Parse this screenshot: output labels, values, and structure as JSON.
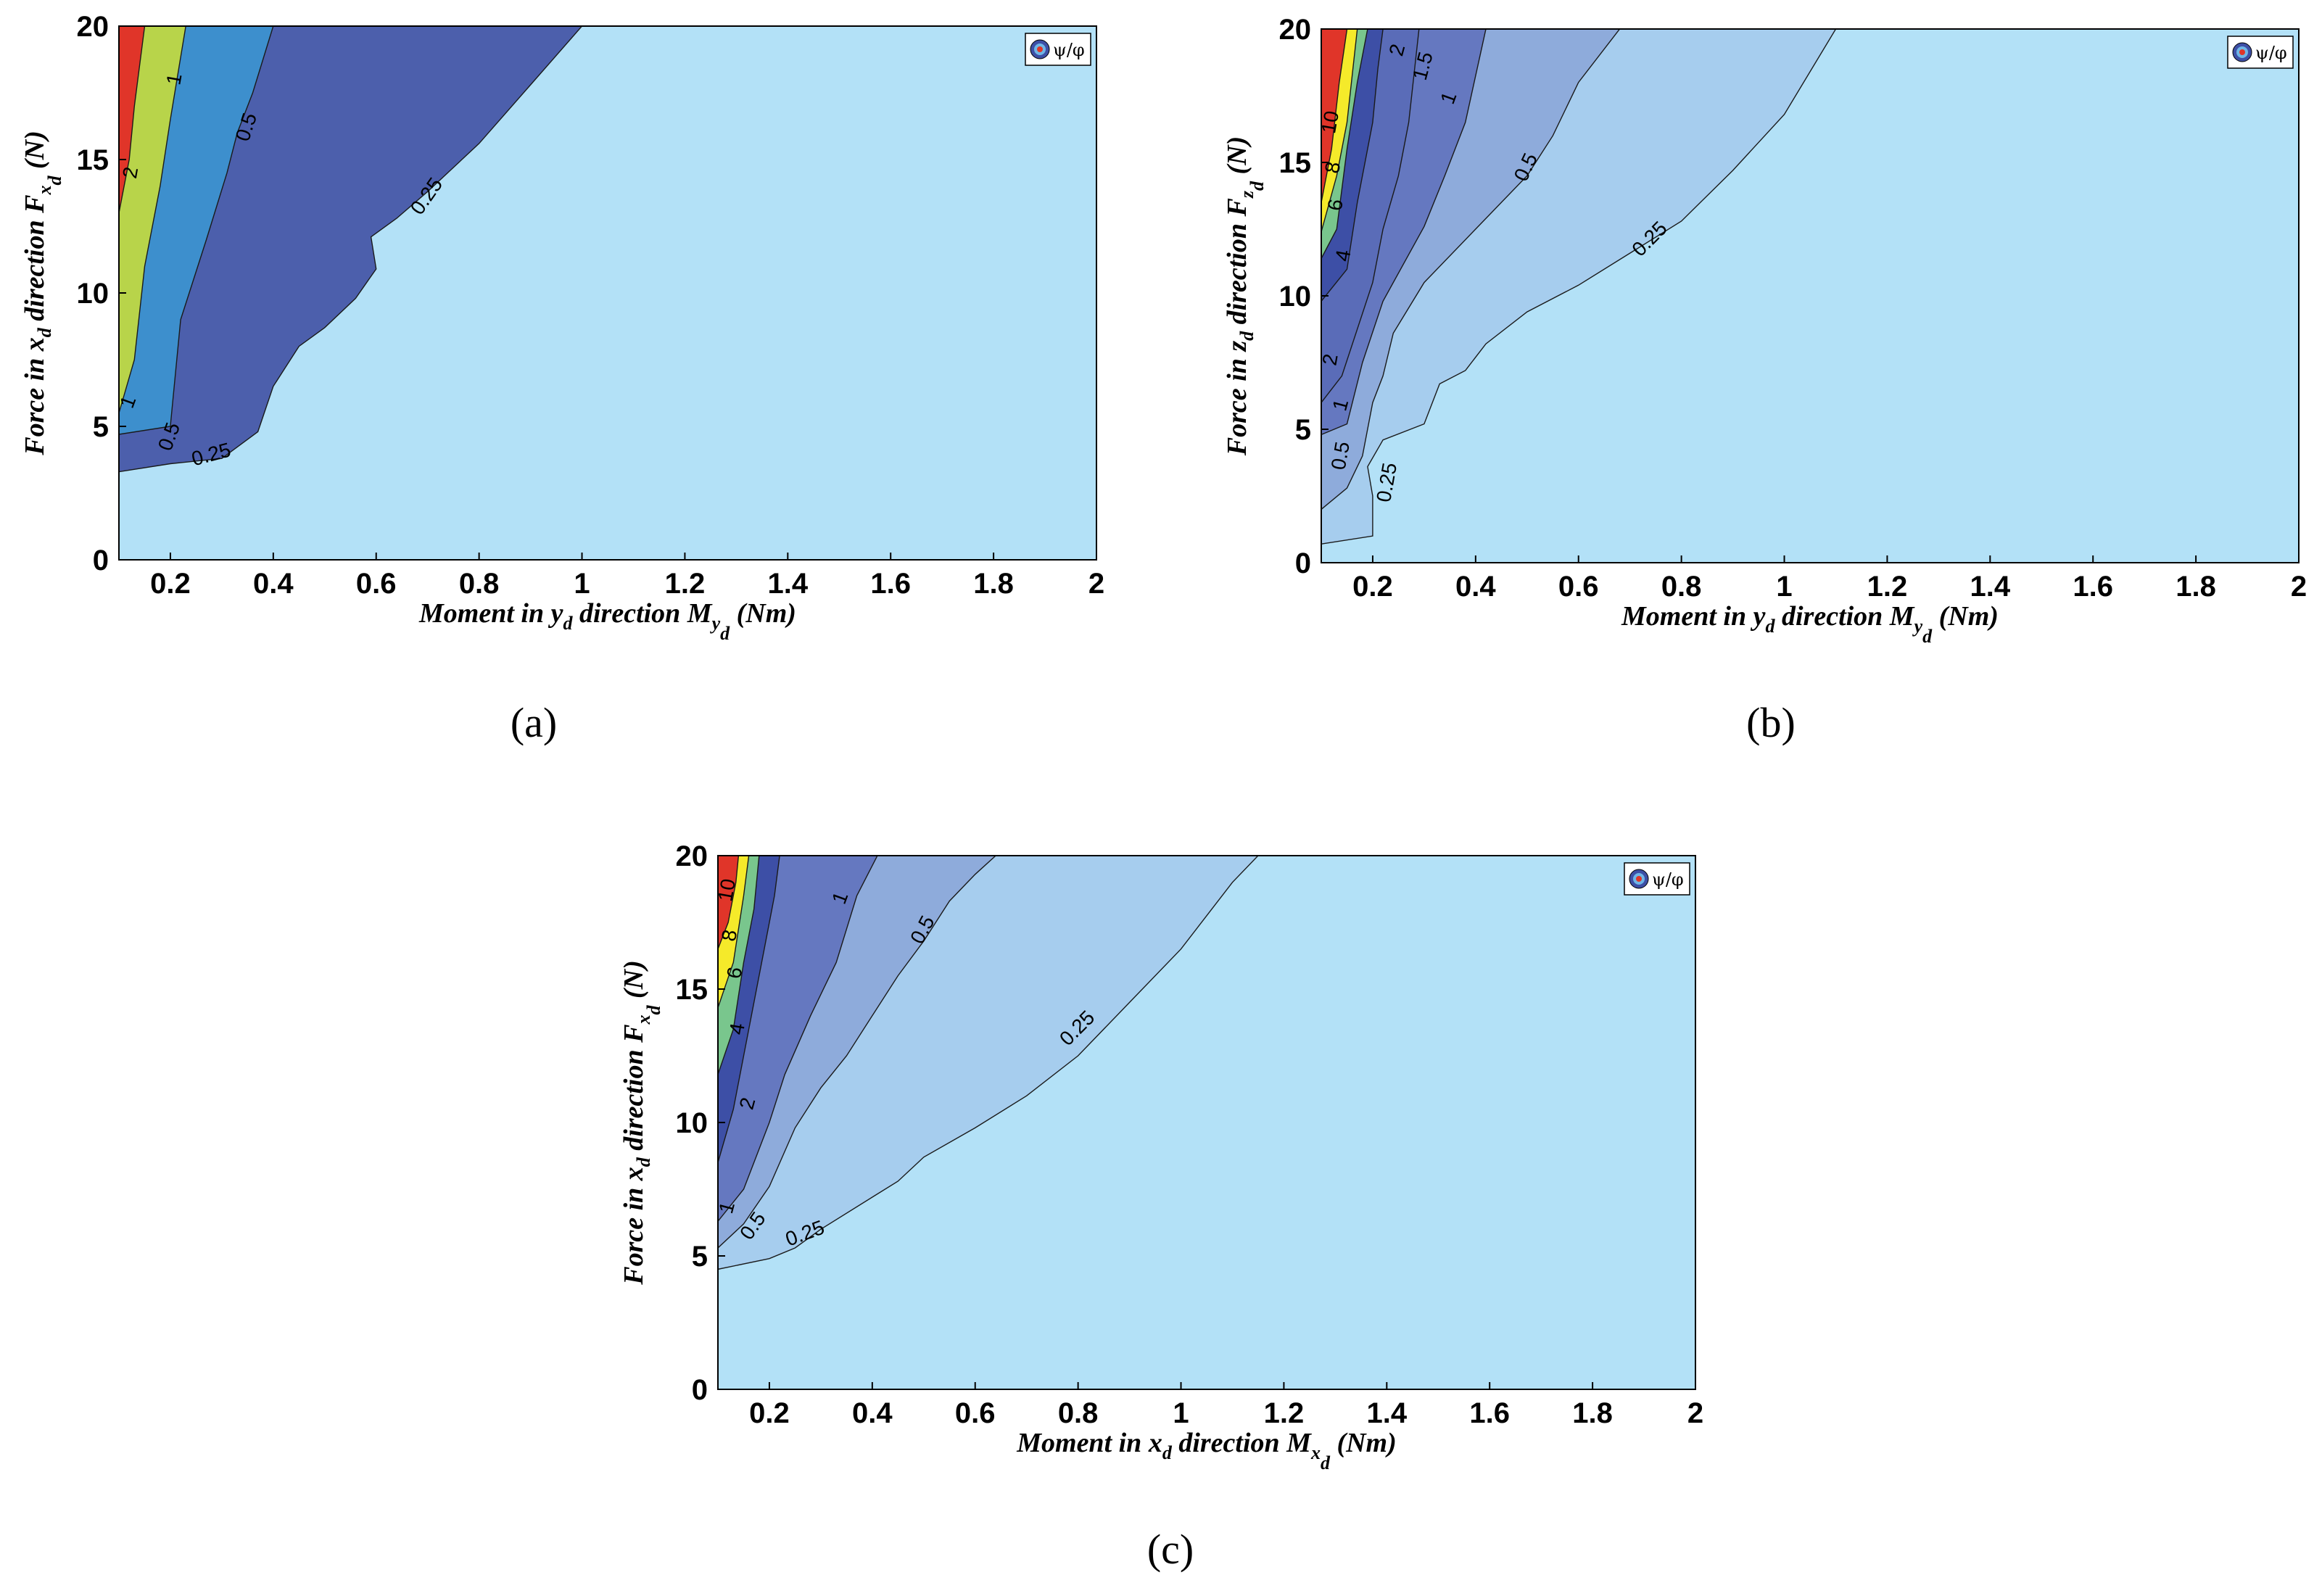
{
  "chart_data": [
    {
      "type": "contour",
      "panel_label": "(a)",
      "xlabel": "Moment in y",
      "xlabel_sub": "d",
      "xlabel_mid": " direction M",
      "xlabel_sub2": "y",
      "xlabel_sub3": "d",
      "xlabel_unit": " (Nm)",
      "ylabel": "Force in x",
      "ylabel_sub": "d",
      "ylabel_mid": " direction F",
      "ylabel_sub2": "x",
      "ylabel_sub3": "d",
      "ylabel_unit": " (N)",
      "xlim": [
        0.1,
        2
      ],
      "ylim": [
        0,
        20
      ],
      "xticks": [
        "0.2",
        "0.4",
        "0.6",
        "0.8",
        "1",
        "1.2",
        "1.4",
        "1.6",
        "1.8",
        "2"
      ],
      "yticks": [
        "0",
        "5",
        "10",
        "15",
        "20"
      ],
      "legend": "ψ/φ",
      "background": "#b3e1f7",
      "levels": [
        {
          "color": "#4c5fac",
          "pts": [
            [
              0.1,
              3.3
            ],
            [
              0.2,
              3.6
            ],
            [
              0.3,
              3.8
            ],
            [
              0.37,
              4.8
            ],
            [
              0.4,
              6.5
            ],
            [
              0.45,
              8.0
            ],
            [
              0.5,
              8.7
            ],
            [
              0.56,
              9.8
            ],
            [
              0.6,
              10.9
            ],
            [
              0.59,
              12.1
            ],
            [
              0.64,
              12.8
            ],
            [
              0.7,
              13.8
            ],
            [
              0.8,
              15.6
            ],
            [
              0.9,
              17.8
            ],
            [
              1.0,
              20
            ],
            [
              0.1,
              20
            ]
          ]
        },
        {
          "color": "#3d8fcd",
          "pts": [
            [
              0.1,
              4.7
            ],
            [
              0.2,
              5.0
            ],
            [
              0.22,
              9.0
            ],
            [
              0.27,
              12.0
            ],
            [
              0.31,
              14.5
            ],
            [
              0.33,
              16.0
            ],
            [
              0.36,
              17.5
            ],
            [
              0.4,
              20
            ],
            [
              0.1,
              20
            ]
          ]
        },
        {
          "color": "#b8d44a",
          "pts": [
            [
              0.1,
              5.5
            ],
            [
              0.13,
              7.5
            ],
            [
              0.15,
              11
            ],
            [
              0.18,
              14
            ],
            [
              0.2,
              16.5
            ],
            [
              0.23,
              20
            ],
            [
              0.1,
              20
            ]
          ]
        },
        {
          "color": "#e03529",
          "pts": [
            [
              0.1,
              13
            ],
            [
              0.12,
              15
            ],
            [
              0.13,
              17
            ],
            [
              0.15,
              20
            ],
            [
              0.1,
              20
            ]
          ]
        }
      ],
      "contour_labels": [
        {
          "text": "2",
          "x": 0.125,
          "y": 14.5,
          "rot": -80
        },
        {
          "text": "1",
          "x": 0.21,
          "y": 18.0,
          "rot": -80
        },
        {
          "text": "1",
          "x": 0.12,
          "y": 5.9,
          "rot": -70
        },
        {
          "text": "0.5",
          "x": 0.35,
          "y": 16.2,
          "rot": -72
        },
        {
          "text": "0.5",
          "x": 0.2,
          "y": 4.6,
          "rot": -70
        },
        {
          "text": "0.25",
          "x": 0.7,
          "y": 13.6,
          "rot": -55
        },
        {
          "text": "0.25",
          "x": 0.28,
          "y": 3.9,
          "rot": -15
        }
      ]
    },
    {
      "type": "contour",
      "panel_label": "(b)",
      "xlabel": "Moment in y",
      "xlabel_sub": "d",
      "xlabel_mid": " direction M",
      "xlabel_sub2": "y",
      "xlabel_sub3": "d",
      "xlabel_unit": " (Nm)",
      "ylabel": "Force in z",
      "ylabel_sub": "d",
      "ylabel_mid": " direction F",
      "ylabel_sub2": "z",
      "ylabel_sub3": "d",
      "ylabel_unit": " (N)",
      "xlim": [
        0.1,
        2
      ],
      "ylim": [
        0,
        20
      ],
      "xticks": [
        "0.2",
        "0.4",
        "0.6",
        "0.8",
        "1",
        "1.2",
        "1.4",
        "1.6",
        "1.8",
        "2"
      ],
      "yticks": [
        "0",
        "5",
        "10",
        "15",
        "20"
      ],
      "legend": "ψ/φ",
      "background": "#b3e1f7",
      "levels": [
        {
          "color": "#a6cdee",
          "pts": [
            [
              0.1,
              0.7
            ],
            [
              0.2,
              1.0
            ],
            [
              0.2,
              2.5
            ],
            [
              0.19,
              3.6
            ],
            [
              0.22,
              4.6
            ],
            [
              0.3,
              5.2
            ],
            [
              0.33,
              6.7
            ],
            [
              0.38,
              7.2
            ],
            [
              0.42,
              8.2
            ],
            [
              0.5,
              9.4
            ],
            [
              0.6,
              10.4
            ],
            [
              0.7,
              11.6
            ],
            [
              0.8,
              12.8
            ],
            [
              0.9,
              14.7
            ],
            [
              1.0,
              16.8
            ],
            [
              1.1,
              20
            ],
            [
              0.1,
              20
            ]
          ]
        },
        {
          "color": "#8eabdb",
          "pts": [
            [
              0.1,
              2.0
            ],
            [
              0.15,
              2.8
            ],
            [
              0.18,
              4.0
            ],
            [
              0.2,
              6.0
            ],
            [
              0.22,
              7.0
            ],
            [
              0.24,
              8.6
            ],
            [
              0.3,
              10.5
            ],
            [
              0.4,
              12.5
            ],
            [
              0.5,
              14.5
            ],
            [
              0.55,
              16.0
            ],
            [
              0.6,
              18.0
            ],
            [
              0.68,
              20
            ],
            [
              0.1,
              20
            ]
          ]
        },
        {
          "color": "#6578c0",
          "pts": [
            [
              0.1,
              4.8
            ],
            [
              0.15,
              5.2
            ],
            [
              0.18,
              7.5
            ],
            [
              0.22,
              9.8
            ],
            [
              0.3,
              12.6
            ],
            [
              0.34,
              14.5
            ],
            [
              0.38,
              16.5
            ],
            [
              0.42,
              20
            ],
            [
              0.1,
              20
            ]
          ]
        },
        {
          "color": "#5a6cb8",
          "pts": [
            [
              0.1,
              6.0
            ],
            [
              0.14,
              7.0
            ],
            [
              0.2,
              10.5
            ],
            [
              0.22,
              12.5
            ],
            [
              0.25,
              14.5
            ],
            [
              0.27,
              16.5
            ],
            [
              0.29,
              20
            ],
            [
              0.1,
              20
            ]
          ]
        },
        {
          "color": "#3d4fa6",
          "pts": [
            [
              0.1,
              9.8
            ],
            [
              0.15,
              11.0
            ],
            [
              0.17,
              13.5
            ],
            [
              0.2,
              16.5
            ],
            [
              0.21,
              18.5
            ],
            [
              0.22,
              20
            ],
            [
              0.1,
              20
            ]
          ]
        },
        {
          "color": "#79c68d",
          "pts": [
            [
              0.1,
              11.4
            ],
            [
              0.13,
              12.5
            ],
            [
              0.15,
              15.5
            ],
            [
              0.17,
              18
            ],
            [
              0.19,
              20
            ],
            [
              0.1,
              20
            ]
          ]
        },
        {
          "color": "#f5ea2a",
          "pts": [
            [
              0.1,
              12.4
            ],
            [
              0.13,
              14.5
            ],
            [
              0.15,
              16.5
            ],
            [
              0.17,
              20
            ],
            [
              0.1,
              20
            ]
          ]
        },
        {
          "color": "#e03529",
          "pts": [
            [
              0.1,
              13.5
            ],
            [
              0.12,
              15.5
            ],
            [
              0.135,
              18
            ],
            [
              0.15,
              20
            ],
            [
              0.1,
              20
            ]
          ]
        }
      ],
      "contour_labels": [
        {
          "text": "10",
          "x": 0.12,
          "y": 16.5,
          "rot": -80
        },
        {
          "text": "8",
          "x": 0.125,
          "y": 14.8,
          "rot": -80
        },
        {
          "text": "6",
          "x": 0.13,
          "y": 13.4,
          "rot": -80
        },
        {
          "text": "4",
          "x": 0.145,
          "y": 11.5,
          "rot": -80
        },
        {
          "text": "2",
          "x": 0.25,
          "y": 19.2,
          "rot": -75
        },
        {
          "text": "2",
          "x": 0.12,
          "y": 7.6,
          "rot": -80
        },
        {
          "text": "1.5",
          "x": 0.3,
          "y": 18.6,
          "rot": -75
        },
        {
          "text": "1",
          "x": 0.35,
          "y": 17.4,
          "rot": -70
        },
        {
          "text": "1",
          "x": 0.14,
          "y": 5.9,
          "rot": -75
        },
        {
          "text": "0.5",
          "x": 0.5,
          "y": 14.8,
          "rot": -65
        },
        {
          "text": "0.5",
          "x": 0.14,
          "y": 4.0,
          "rot": -80
        },
        {
          "text": "0.25",
          "x": 0.74,
          "y": 12.1,
          "rot": -45
        },
        {
          "text": "0.25",
          "x": 0.23,
          "y": 3.0,
          "rot": -80
        }
      ]
    },
    {
      "type": "contour",
      "panel_label": "(c)",
      "xlabel": "Moment in x",
      "xlabel_sub": "d",
      "xlabel_mid": " direction M",
      "xlabel_sub2": "x",
      "xlabel_sub3": "d",
      "xlabel_unit": " (Nm)",
      "ylabel": "Force in x",
      "ylabel_sub": "d",
      "ylabel_mid": " direction F",
      "ylabel_sub2": "x",
      "ylabel_sub3": "d",
      "ylabel_unit": " (N)",
      "xlim": [
        0.1,
        2
      ],
      "ylim": [
        0,
        20
      ],
      "xticks": [
        "0.2",
        "0.4",
        "0.6",
        "0.8",
        "1",
        "1.2",
        "1.4",
        "1.6",
        "1.8",
        "2"
      ],
      "yticks": [
        "0",
        "5",
        "10",
        "15",
        "20"
      ],
      "legend": "ψ/φ",
      "background": "#b3e1f7",
      "levels": [
        {
          "color": "#a6cdee",
          "pts": [
            [
              0.1,
              4.5
            ],
            [
              0.2,
              4.9
            ],
            [
              0.25,
              5.3
            ],
            [
              0.3,
              6.0
            ],
            [
              0.4,
              7.2
            ],
            [
              0.45,
              7.8
            ],
            [
              0.5,
              8.7
            ],
            [
              0.6,
              9.8
            ],
            [
              0.7,
              11.0
            ],
            [
              0.8,
              12.5
            ],
            [
              0.9,
              14.5
            ],
            [
              1.0,
              16.5
            ],
            [
              1.1,
              19.0
            ],
            [
              1.15,
              20
            ],
            [
              0.1,
              20
            ]
          ]
        },
        {
          "color": "#8eabdb",
          "pts": [
            [
              0.1,
              5.3
            ],
            [
              0.15,
              6.2
            ],
            [
              0.2,
              7.6
            ],
            [
              0.25,
              9.8
            ],
            [
              0.3,
              11.3
            ],
            [
              0.35,
              12.5
            ],
            [
              0.4,
              14.0
            ],
            [
              0.45,
              15.5
            ],
            [
              0.5,
              16.8
            ],
            [
              0.55,
              18.3
            ],
            [
              0.6,
              19.3
            ],
            [
              0.64,
              20
            ],
            [
              0.1,
              20
            ]
          ]
        },
        {
          "color": "#6578c0",
          "pts": [
            [
              0.1,
              6.3
            ],
            [
              0.15,
              7.5
            ],
            [
              0.2,
              10.0
            ],
            [
              0.23,
              11.8
            ],
            [
              0.28,
              14.0
            ],
            [
              0.33,
              16.0
            ],
            [
              0.37,
              18.5
            ],
            [
              0.41,
              20
            ],
            [
              0.1,
              20
            ]
          ]
        },
        {
          "color": "#3d4fa6",
          "pts": [
            [
              0.1,
              8.5
            ],
            [
              0.13,
              10.5
            ],
            [
              0.15,
              12.5
            ],
            [
              0.17,
              14.5
            ],
            [
              0.19,
              16.5
            ],
            [
              0.21,
              18.5
            ],
            [
              0.22,
              20
            ],
            [
              0.1,
              20
            ]
          ]
        },
        {
          "color": "#79c68d",
          "pts": [
            [
              0.1,
              11.8
            ],
            [
              0.13,
              13.5
            ],
            [
              0.15,
              16.0
            ],
            [
              0.17,
              18.0
            ],
            [
              0.18,
              20
            ],
            [
              0.1,
              20
            ]
          ]
        },
        {
          "color": "#f5ea2a",
          "pts": [
            [
              0.1,
              14.3
            ],
            [
              0.13,
              16.0
            ],
            [
              0.15,
              18.5
            ],
            [
              0.16,
              20
            ],
            [
              0.1,
              20
            ]
          ]
        },
        {
          "color": "#e03529",
          "pts": [
            [
              0.1,
              16.5
            ],
            [
              0.12,
              17.5
            ],
            [
              0.135,
              19
            ],
            [
              0.14,
              20
            ],
            [
              0.1,
              20
            ]
          ]
        }
      ],
      "contour_labels": [
        {
          "text": "10",
          "x": 0.12,
          "y": 18.7,
          "rot": -80
        },
        {
          "text": "8",
          "x": 0.125,
          "y": 17.0,
          "rot": -80
        },
        {
          "text": "6",
          "x": 0.135,
          "y": 15.6,
          "rot": -80
        },
        {
          "text": "4",
          "x": 0.14,
          "y": 13.5,
          "rot": -80
        },
        {
          "text": "2",
          "x": 0.16,
          "y": 10.7,
          "rot": -75
        },
        {
          "text": "1",
          "x": 0.34,
          "y": 18.4,
          "rot": -70
        },
        {
          "text": "1",
          "x": 0.12,
          "y": 6.8,
          "rot": -75
        },
        {
          "text": "0.5",
          "x": 0.5,
          "y": 17.2,
          "rot": -62
        },
        {
          "text": "0.5",
          "x": 0.17,
          "y": 6.1,
          "rot": -55
        },
        {
          "text": "0.25",
          "x": 0.8,
          "y": 13.5,
          "rot": -45
        },
        {
          "text": "0.25",
          "x": 0.27,
          "y": 5.8,
          "rot": -20
        }
      ]
    }
  ]
}
